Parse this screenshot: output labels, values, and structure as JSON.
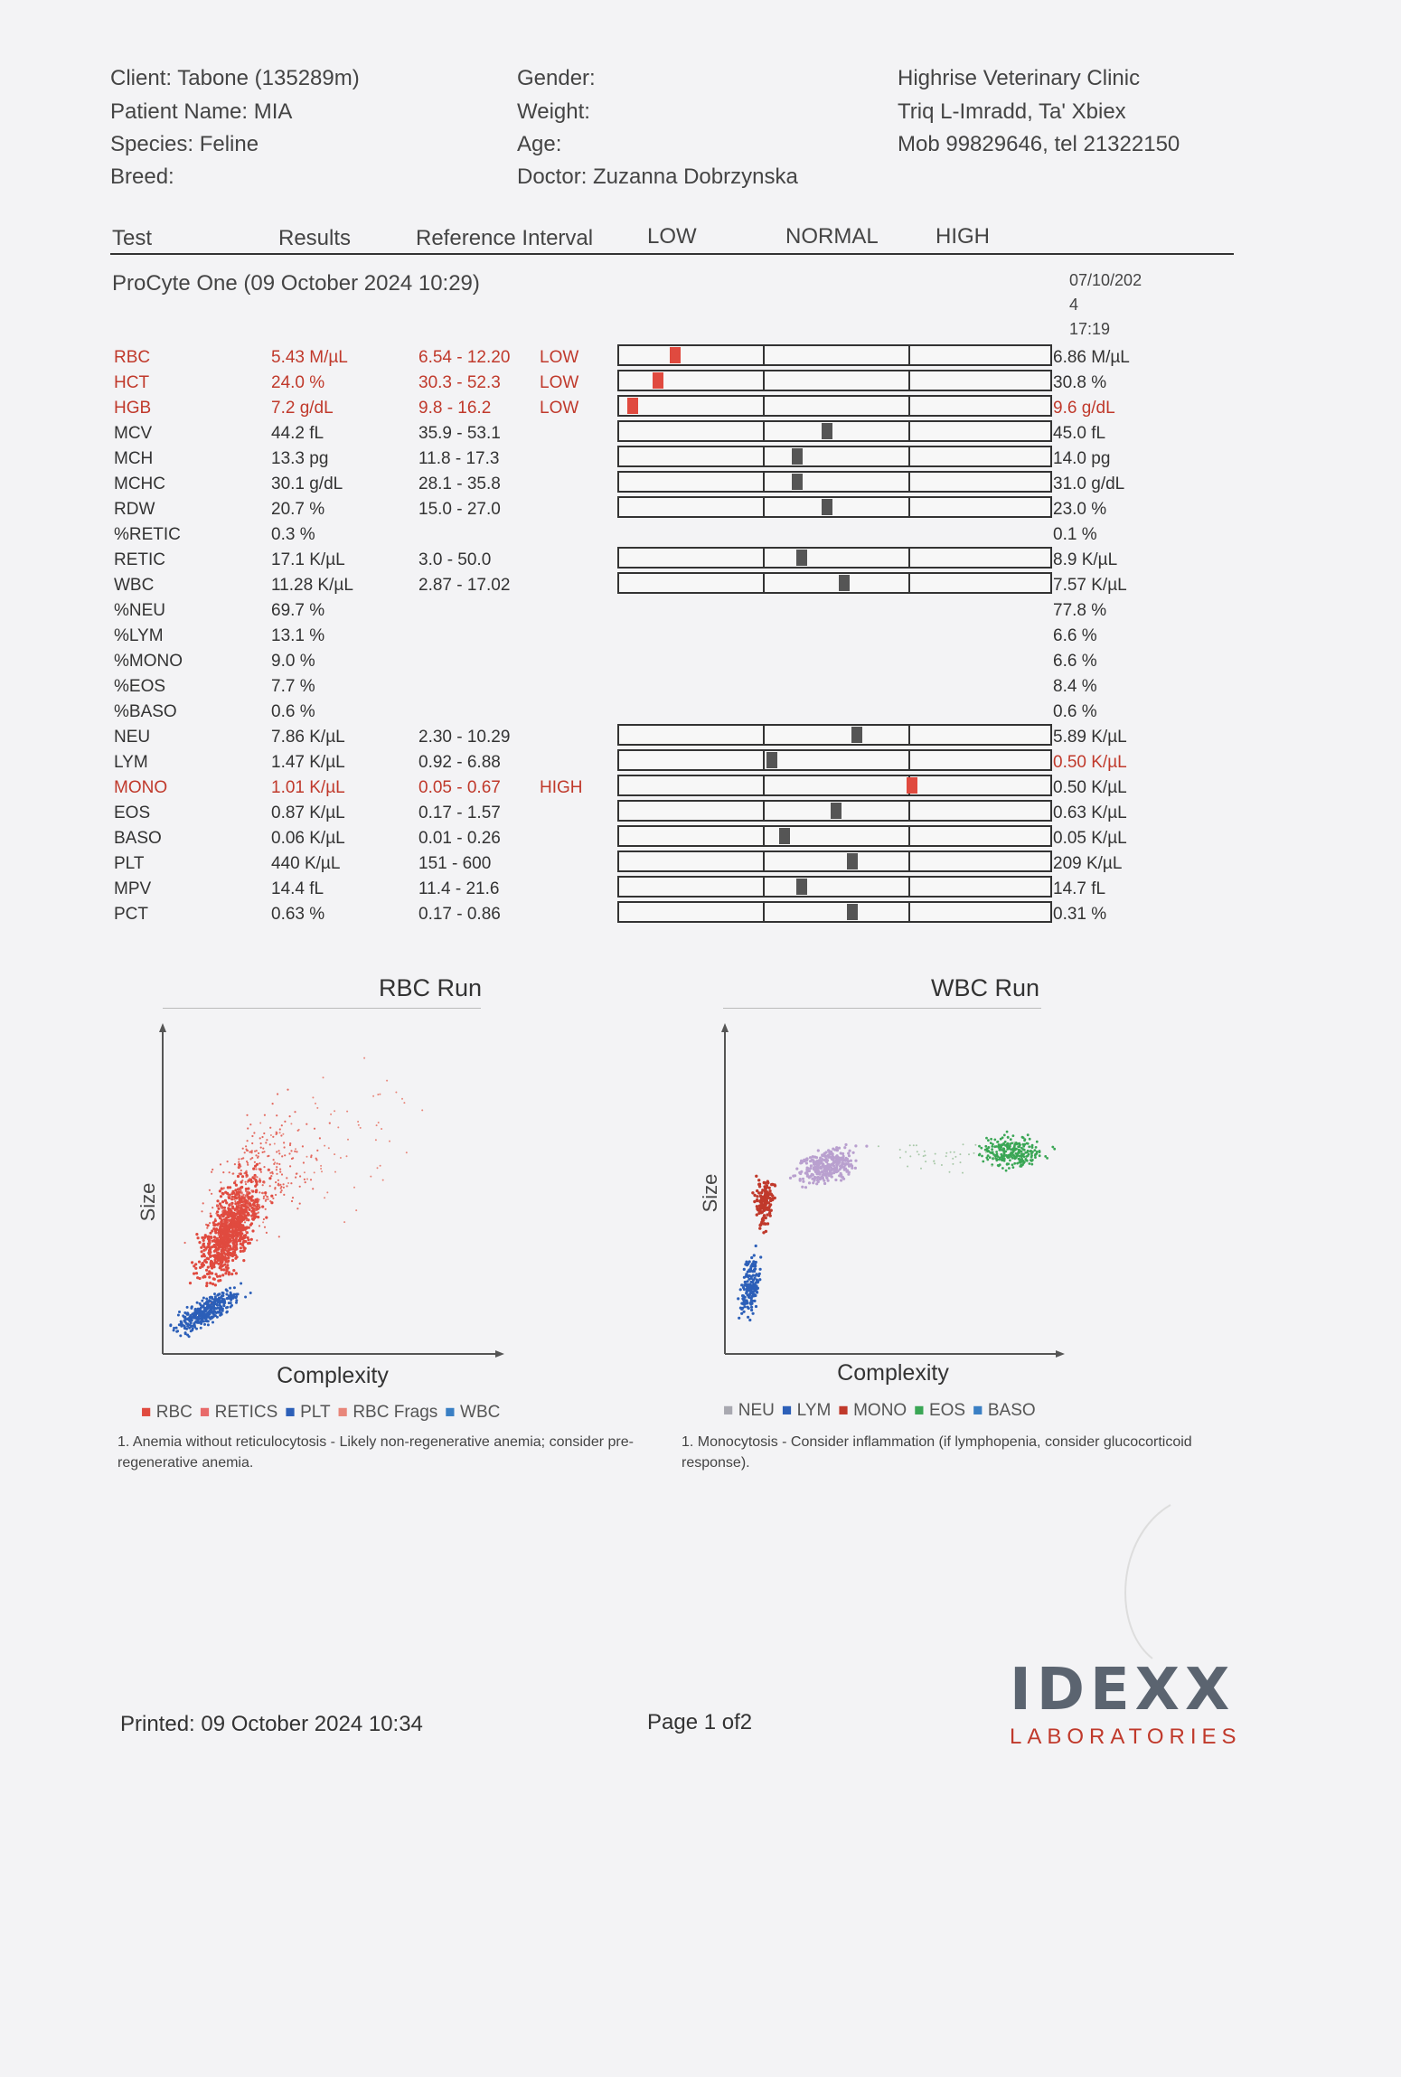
{
  "header": {
    "client": "Client: Tabone (135289m)",
    "patient": "Patient Name: MIA",
    "species": "Species: Feline",
    "breed": "Breed:",
    "gender": "Gender:",
    "weight": "Weight:",
    "age": "Age:",
    "doctor": "Doctor: Zuzanna Dobrzynska",
    "clinic_name": "Highrise Veterinary Clinic",
    "clinic_address": "Triq L-Imradd, Ta' Xbiex",
    "clinic_phone": "Mob 99829646, tel 21322150"
  },
  "columns": {
    "test": "Test",
    "results": "Results",
    "reference": "Reference Interval",
    "low": "LOW",
    "normal": "NORMAL",
    "high": "HIGH"
  },
  "run": {
    "title": "ProCyte One (09 October 2024 10:29)",
    "prev_date_a": "07/10/202",
    "prev_date_b": "4",
    "prev_time": "17:19"
  },
  "tests": [
    {
      "name": "RBC",
      "result": "5.43 M/µL",
      "ref": "6.54 - 12.20",
      "flag": "LOW",
      "prev": "6.86 M/µL",
      "abnormal": true,
      "prev_abnormal": false,
      "bar": true,
      "pos": 0.12
    },
    {
      "name": "HCT",
      "result": "24.0 %",
      "ref": "30.3 - 52.3",
      "flag": "LOW",
      "prev": "30.8 %",
      "abnormal": true,
      "prev_abnormal": false,
      "bar": true,
      "pos": 0.08
    },
    {
      "name": "HGB",
      "result": "7.2 g/dL",
      "ref": "9.8 - 16.2",
      "flag": "LOW",
      "prev": "9.6 g/dL",
      "abnormal": true,
      "prev_abnormal": true,
      "bar": true,
      "pos": 0.02
    },
    {
      "name": "MCV",
      "result": "44.2 fL",
      "ref": "35.9 - 53.1",
      "flag": "",
      "prev": "45.0 fL",
      "abnormal": false,
      "prev_abnormal": false,
      "bar": true,
      "pos": 0.48
    },
    {
      "name": "MCH",
      "result": "13.3 pg",
      "ref": "11.8 - 17.3",
      "flag": "",
      "prev": "14.0 pg",
      "abnormal": false,
      "prev_abnormal": false,
      "bar": true,
      "pos": 0.41
    },
    {
      "name": "MCHC",
      "result": "30.1 g/dL",
      "ref": "28.1 - 35.8",
      "flag": "",
      "prev": "31.0 g/dL",
      "abnormal": false,
      "prev_abnormal": false,
      "bar": true,
      "pos": 0.41
    },
    {
      "name": "RDW",
      "result": "20.7 %",
      "ref": "15.0 - 27.0",
      "flag": "",
      "prev": "23.0 %",
      "abnormal": false,
      "prev_abnormal": false,
      "bar": true,
      "pos": 0.48
    },
    {
      "name": "%RETIC",
      "result": "0.3 %",
      "ref": "",
      "flag": "",
      "prev": "0.1 %",
      "abnormal": false,
      "prev_abnormal": false,
      "bar": false,
      "pos": 0
    },
    {
      "name": "RETIC",
      "result": "17.1 K/µL",
      "ref": "3.0 - 50.0",
      "flag": "",
      "prev": "8.9 K/µL",
      "abnormal": false,
      "prev_abnormal": false,
      "bar": true,
      "pos": 0.42
    },
    {
      "name": "WBC",
      "result": "11.28 K/µL",
      "ref": "2.87 - 17.02",
      "flag": "",
      "prev": "7.57 K/µL",
      "abnormal": false,
      "prev_abnormal": false,
      "bar": true,
      "pos": 0.52
    },
    {
      "name": "%NEU",
      "result": "69.7 %",
      "ref": "",
      "flag": "",
      "prev": "77.8 %",
      "abnormal": false,
      "prev_abnormal": false,
      "bar": false,
      "pos": 0
    },
    {
      "name": "%LYM",
      "result": "13.1 %",
      "ref": "",
      "flag": "",
      "prev": "6.6 %",
      "abnormal": false,
      "prev_abnormal": false,
      "bar": false,
      "pos": 0
    },
    {
      "name": "%MONO",
      "result": "9.0 %",
      "ref": "",
      "flag": "",
      "prev": "6.6 %",
      "abnormal": false,
      "prev_abnormal": false,
      "bar": false,
      "pos": 0
    },
    {
      "name": "%EOS",
      "result": "7.7 %",
      "ref": "",
      "flag": "",
      "prev": "8.4 %",
      "abnormal": false,
      "prev_abnormal": false,
      "bar": false,
      "pos": 0
    },
    {
      "name": "%BASO",
      "result": "0.6 %",
      "ref": "",
      "flag": "",
      "prev": "0.6 %",
      "abnormal": false,
      "prev_abnormal": false,
      "bar": false,
      "pos": 0
    },
    {
      "name": "NEU",
      "result": "7.86 K/µL",
      "ref": "2.30 - 10.29",
      "flag": "",
      "prev": "5.89 K/µL",
      "abnormal": false,
      "prev_abnormal": false,
      "bar": true,
      "pos": 0.55
    },
    {
      "name": "LYM",
      "result": "1.47 K/µL",
      "ref": "0.92 - 6.88",
      "flag": "",
      "prev": "0.50 K/µL",
      "abnormal": false,
      "prev_abnormal": true,
      "bar": true,
      "pos": 0.35
    },
    {
      "name": "MONO",
      "result": "1.01 K/µL",
      "ref": "0.05 - 0.67",
      "flag": "HIGH",
      "prev": "0.50 K/µL",
      "abnormal": true,
      "prev_abnormal": false,
      "bar": true,
      "pos": 0.68
    },
    {
      "name": "EOS",
      "result": "0.87 K/µL",
      "ref": "0.17 - 1.57",
      "flag": "",
      "prev": "0.63 K/µL",
      "abnormal": false,
      "prev_abnormal": false,
      "bar": true,
      "pos": 0.5
    },
    {
      "name": "BASO",
      "result": "0.06 K/µL",
      "ref": "0.01 - 0.26",
      "flag": "",
      "prev": "0.05 K/µL",
      "abnormal": false,
      "prev_abnormal": false,
      "bar": true,
      "pos": 0.38
    },
    {
      "name": "PLT",
      "result": "440 K/µL",
      "ref": "151 - 600",
      "flag": "",
      "prev": "209 K/µL",
      "abnormal": false,
      "prev_abnormal": false,
      "bar": true,
      "pos": 0.54
    },
    {
      "name": "MPV",
      "result": "14.4 fL",
      "ref": "11.4 - 21.6",
      "flag": "",
      "prev": "14.7 fL",
      "abnormal": false,
      "prev_abnormal": false,
      "bar": true,
      "pos": 0.42
    },
    {
      "name": "PCT",
      "result": "0.63 %",
      "ref": "0.17 - 0.86",
      "flag": "",
      "prev": "0.31 %",
      "abnormal": false,
      "prev_abnormal": false,
      "bar": true,
      "pos": 0.54
    }
  ],
  "rbc_run": {
    "title": "RBC Run",
    "xlabel": "Complexity",
    "ylabel": "Size",
    "legend": [
      "RBC",
      "RETICS",
      "PLT",
      "RBC Frags",
      "WBC"
    ],
    "colors": [
      "#e04a3f",
      "#e86a6a",
      "#2c5fb8",
      "#e8867a",
      "#3a7fc4"
    ],
    "note": "1. Anemia without reticulocytosis - Likely non-regenerative anemia; consider pre-regenerative anemia."
  },
  "wbc_run": {
    "title": "WBC Run",
    "xlabel": "Complexity",
    "ylabel": "Size",
    "legend": [
      "NEU",
      "LYM",
      "MONO",
      "EOS",
      "BASO"
    ],
    "colors": [
      "#a8a8b0",
      "#2c5fb8",
      "#c0392b",
      "#3aa655",
      "#3a7fc4"
    ],
    "note": "1. Monocytosis - Consider inflammation (if lymphopenia, consider glucocorticoid response)."
  },
  "footer": {
    "printed": "Printed: 09 October 2024 10:34",
    "page": "Page 1 of2",
    "logo_top": "IDEXX",
    "logo_bottom": "LABORATORIES"
  }
}
